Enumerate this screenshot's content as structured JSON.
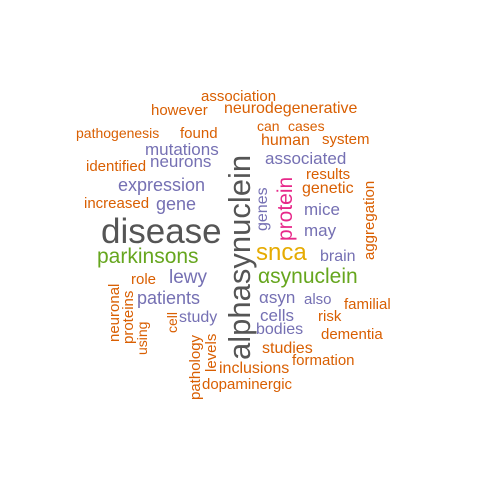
{
  "words": {
    "association": "association",
    "however": "however",
    "neurodegenerative": "neurodegenerative",
    "can": "can",
    "cases": "cases",
    "pathogenesis": "pathogenesis",
    "found": "found",
    "human": "human",
    "system": "system",
    "mutations": "mutations",
    "identified": "identified",
    "neurons": "neurons",
    "associated": "associated",
    "results": "results",
    "expression": "expression",
    "genetic": "genetic",
    "increased": "increased",
    "gene": "gene",
    "mice": "mice",
    "genes": "genes",
    "protein": "protein",
    "aggregation": "aggregation",
    "may": "may",
    "disease": "disease",
    "alphasynuclein": "alphasynuclein",
    "parkinsons": "parkinsons",
    "snca": "snca",
    "brain": "brain",
    "role": "role",
    "lewy": "lewy",
    "asynuclein": "αsynuclein",
    "neuronal": "neuronal",
    "proteins": "proteins",
    "patients": "patients",
    "asyn": "αsyn",
    "also": "also",
    "familial": "familial",
    "cell": "cell",
    "study": "study",
    "cells": "cells",
    "risk": "risk",
    "using": "using",
    "bodies": "bodies",
    "dementia": "dementia",
    "pathology": "pathology",
    "levels": "levels",
    "studies": "studies",
    "formation": "formation",
    "inclusions": "inclusions",
    "dopaminergic": "dopaminergic"
  },
  "colors": {
    "orange": "#d95f02",
    "purple": "#7570b3",
    "green": "#66a61e",
    "pink": "#e7298a",
    "gold": "#e6ab02",
    "gray": "#555555"
  }
}
